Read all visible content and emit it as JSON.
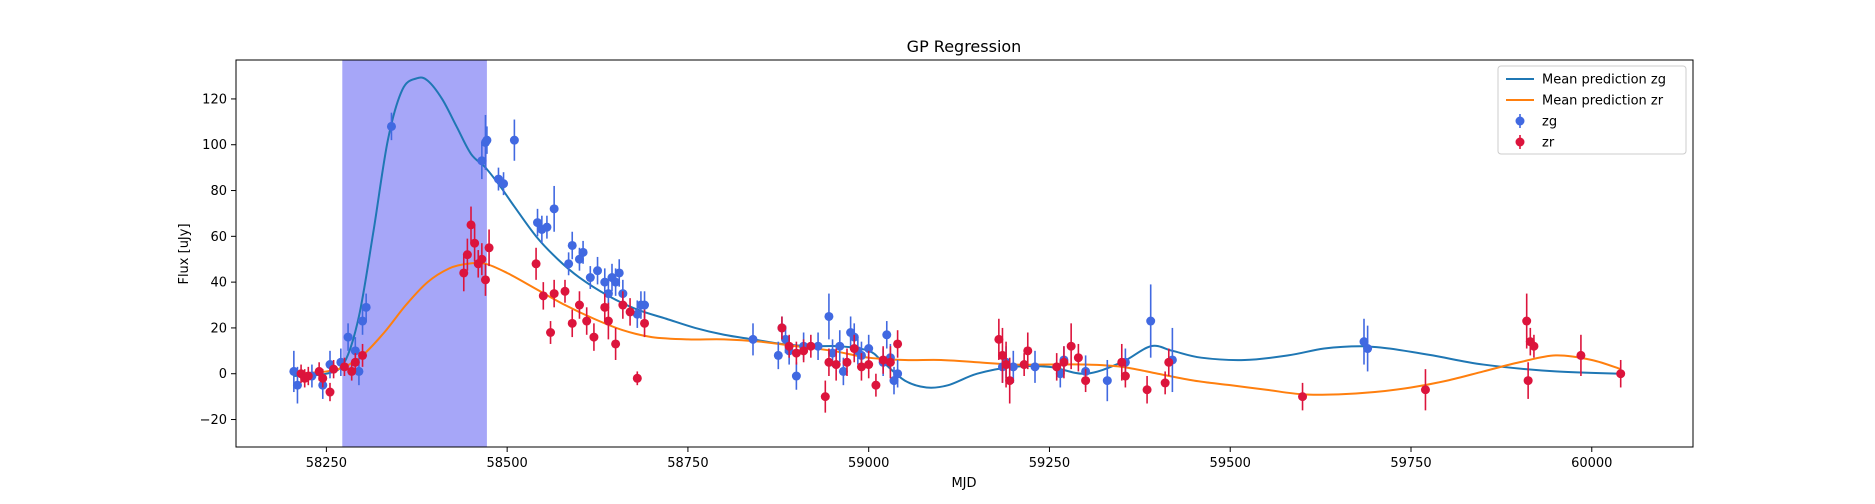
{
  "chart_data": {
    "type": "scatter",
    "title": "GP Regression",
    "xlabel": "MJD",
    "ylabel": "Flux [uJy]",
    "xlim": [
      58125,
      60140
    ],
    "ylim": [
      -32,
      137
    ],
    "xticks": [
      58250,
      58500,
      58750,
      59000,
      59250,
      59500,
      59750,
      60000
    ],
    "yticks": [
      -20,
      0,
      20,
      40,
      60,
      80,
      100,
      120
    ],
    "grid": false,
    "legend_position": "top-right",
    "shaded_region": {
      "x_start": 58272,
      "x_end": 58472,
      "color": "#a6a6f8"
    },
    "colors": {
      "line_zg": "#1f77b4",
      "line_zr": "#ff7f0e",
      "points_zg": "#4169e1",
      "points_zr": "#dc143c"
    },
    "legend": [
      {
        "label": "Mean prediction zg",
        "kind": "line",
        "color": "#1f77b4"
      },
      {
        "label": "Mean prediction zr",
        "kind": "line",
        "color": "#ff7f0e"
      },
      {
        "label": "zg",
        "kind": "point",
        "color": "#4169e1"
      },
      {
        "label": "zr",
        "kind": "point",
        "color": "#dc143c"
      }
    ],
    "lines": [
      {
        "name": "Mean prediction zg",
        "color": "#1f77b4",
        "x": [
          58205,
          58250,
          58275,
          58295,
          58315,
          58335,
          58355,
          58375,
          58390,
          58410,
          58430,
          58450,
          58470,
          58490,
          58510,
          58540,
          58570,
          58600,
          58640,
          58680,
          58720,
          58760,
          58800,
          58840,
          58880,
          58920,
          58960,
          59000,
          59020,
          59050,
          59080,
          59110,
          59150,
          59200,
          59250,
          59300,
          59350,
          59390,
          59420,
          59460,
          59520,
          59580,
          59630,
          59680,
          59720,
          59780,
          59850,
          59950,
          60040
        ],
        "y": [
          -1,
          0,
          5,
          25,
          62,
          102,
          124,
          129,
          128,
          120,
          108,
          96,
          90,
          82,
          73,
          60,
          50,
          42,
          34,
          28,
          24,
          20,
          17,
          15,
          13,
          12,
          12,
          10,
          5,
          -3,
          -6,
          -5,
          0,
          3,
          3,
          0,
          5,
          12,
          10,
          7,
          6,
          8,
          11,
          12,
          11,
          8,
          4,
          1,
          0
        ]
      },
      {
        "name": "Mean prediction zr",
        "color": "#ff7f0e",
        "x": [
          58205,
          58250,
          58275,
          58300,
          58330,
          58360,
          58390,
          58420,
          58445,
          58470,
          58500,
          58540,
          58580,
          58620,
          58660,
          58700,
          58750,
          58800,
          58850,
          58900,
          58950,
          59000,
          59050,
          59100,
          59150,
          59200,
          59250,
          59300,
          59350,
          59400,
          59450,
          59500,
          59550,
          59600,
          59650,
          59700,
          59750,
          59800,
          59850,
          59900,
          59950,
          60000,
          60040
        ],
        "y": [
          0,
          1,
          3,
          8,
          18,
          30,
          40,
          46,
          48,
          48,
          44,
          37,
          30,
          24,
          19,
          16,
          15,
          15,
          14,
          12,
          10,
          7,
          6,
          6,
          5,
          4,
          4,
          4,
          3,
          0,
          -3,
          -5,
          -7,
          -9,
          -9,
          -8,
          -6,
          -3,
          1,
          5,
          8,
          6,
          2
        ]
      }
    ],
    "series": [
      {
        "name": "zg",
        "color": "#4169e1",
        "x": [
          58205,
          58210,
          58230,
          58245,
          58255,
          58270,
          58280,
          58290,
          58295,
          58300,
          58305,
          58340,
          58465,
          58470,
          58472,
          58488,
          58495,
          58510,
          58542,
          58548,
          58555,
          58565,
          58585,
          58590,
          58600,
          58605,
          58615,
          58625,
          58635,
          58640,
          58645,
          58650,
          58655,
          58660,
          58680,
          58685,
          58690,
          58840,
          58875,
          58880,
          58885,
          58890,
          58900,
          58910,
          58930,
          58945,
          58950,
          58960,
          58965,
          58975,
          58980,
          58985,
          58990,
          59000,
          59020,
          59025,
          59030,
          59035,
          59040,
          59185,
          59190,
          59200,
          59230,
          59265,
          59270,
          59300,
          59330,
          59355,
          59390,
          59420,
          59685,
          59690
        ],
        "y": [
          1,
          -5,
          -1,
          -5,
          4,
          5,
          16,
          10,
          1,
          23,
          29,
          108,
          93,
          101,
          102,
          85,
          83,
          102,
          66,
          63,
          64,
          72,
          48,
          56,
          50,
          53,
          42,
          45,
          40,
          35,
          42,
          40,
          44,
          35,
          26,
          30,
          30,
          15,
          8,
          20,
          15,
          10,
          -1,
          12,
          12,
          25,
          9,
          12,
          1,
          18,
          16,
          10,
          8,
          11,
          5,
          17,
          7,
          -3,
          0,
          3,
          5,
          3,
          3,
          0,
          6,
          1,
          -3,
          5,
          23,
          6,
          14,
          11
        ],
        "err": [
          9,
          8,
          5,
          6,
          6,
          6,
          6,
          6,
          6,
          6,
          6,
          6,
          8,
          12,
          6,
          5,
          5,
          9,
          6,
          6,
          5,
          10,
          5,
          6,
          5,
          5,
          5,
          6,
          6,
          7,
          6,
          6,
          6,
          6,
          6,
          6,
          6,
          7,
          6,
          5,
          6,
          6,
          6,
          6,
          6,
          10,
          6,
          7,
          6,
          7,
          6,
          6,
          6,
          6,
          6,
          6,
          6,
          6,
          6,
          7,
          7,
          7,
          7,
          6,
          6,
          7,
          9,
          6,
          16,
          14,
          10,
          10
        ]
      },
      {
        "name": "zr",
        "color": "#dc143c",
        "x": [
          58215,
          58220,
          58225,
          58240,
          58245,
          58255,
          58260,
          58275,
          58285,
          58290,
          58300,
          58440,
          58445,
          58450,
          58455,
          58460,
          58465,
          58470,
          58475,
          58540,
          58550,
          58560,
          58565,
          58580,
          58590,
          58600,
          58610,
          58620,
          58635,
          58640,
          58650,
          58660,
          58670,
          58680,
          58690,
          58880,
          58890,
          58900,
          58910,
          58920,
          58940,
          58945,
          58955,
          58970,
          58980,
          58990,
          59000,
          59010,
          59020,
          59030,
          59040,
          59180,
          59185,
          59190,
          59195,
          59215,
          59220,
          59260,
          59270,
          59280,
          59290,
          59300,
          59350,
          59355,
          59385,
          59410,
          59415,
          59600,
          59770,
          59910,
          59912,
          59915,
          59920,
          59985,
          60040
        ],
        "y": [
          0,
          -2,
          -1,
          1,
          -2,
          -8,
          2,
          3,
          1,
          5,
          8,
          44,
          52,
          65,
          57,
          48,
          50,
          41,
          55,
          48,
          34,
          18,
          35,
          36,
          22,
          30,
          23,
          16,
          29,
          23,
          13,
          30,
          27,
          -2,
          22,
          20,
          12,
          9,
          10,
          12,
          -10,
          5,
          4,
          5,
          11,
          3,
          4,
          -5,
          6,
          5,
          13,
          15,
          8,
          4,
          -3,
          4,
          10,
          3,
          5,
          12,
          7,
          -3,
          5,
          -1,
          -7,
          -4,
          5,
          -10,
          -7,
          23,
          -3,
          14,
          12,
          8,
          0
        ],
        "err": [
          4,
          4,
          4,
          4,
          4,
          4,
          4,
          4,
          4,
          4,
          5,
          8,
          7,
          8,
          8,
          6,
          7,
          7,
          8,
          7,
          6,
          5,
          6,
          5,
          6,
          6,
          6,
          6,
          6,
          8,
          7,
          6,
          6,
          3,
          6,
          5,
          5,
          5,
          5,
          5,
          7,
          6,
          7,
          6,
          6,
          6,
          6,
          5,
          6,
          7,
          6,
          9,
          12,
          10,
          10,
          5,
          8,
          6,
          7,
          10,
          6,
          5,
          8,
          5,
          6,
          5,
          6,
          6,
          9,
          12,
          8,
          6,
          5,
          9,
          6
        ]
      }
    ]
  }
}
